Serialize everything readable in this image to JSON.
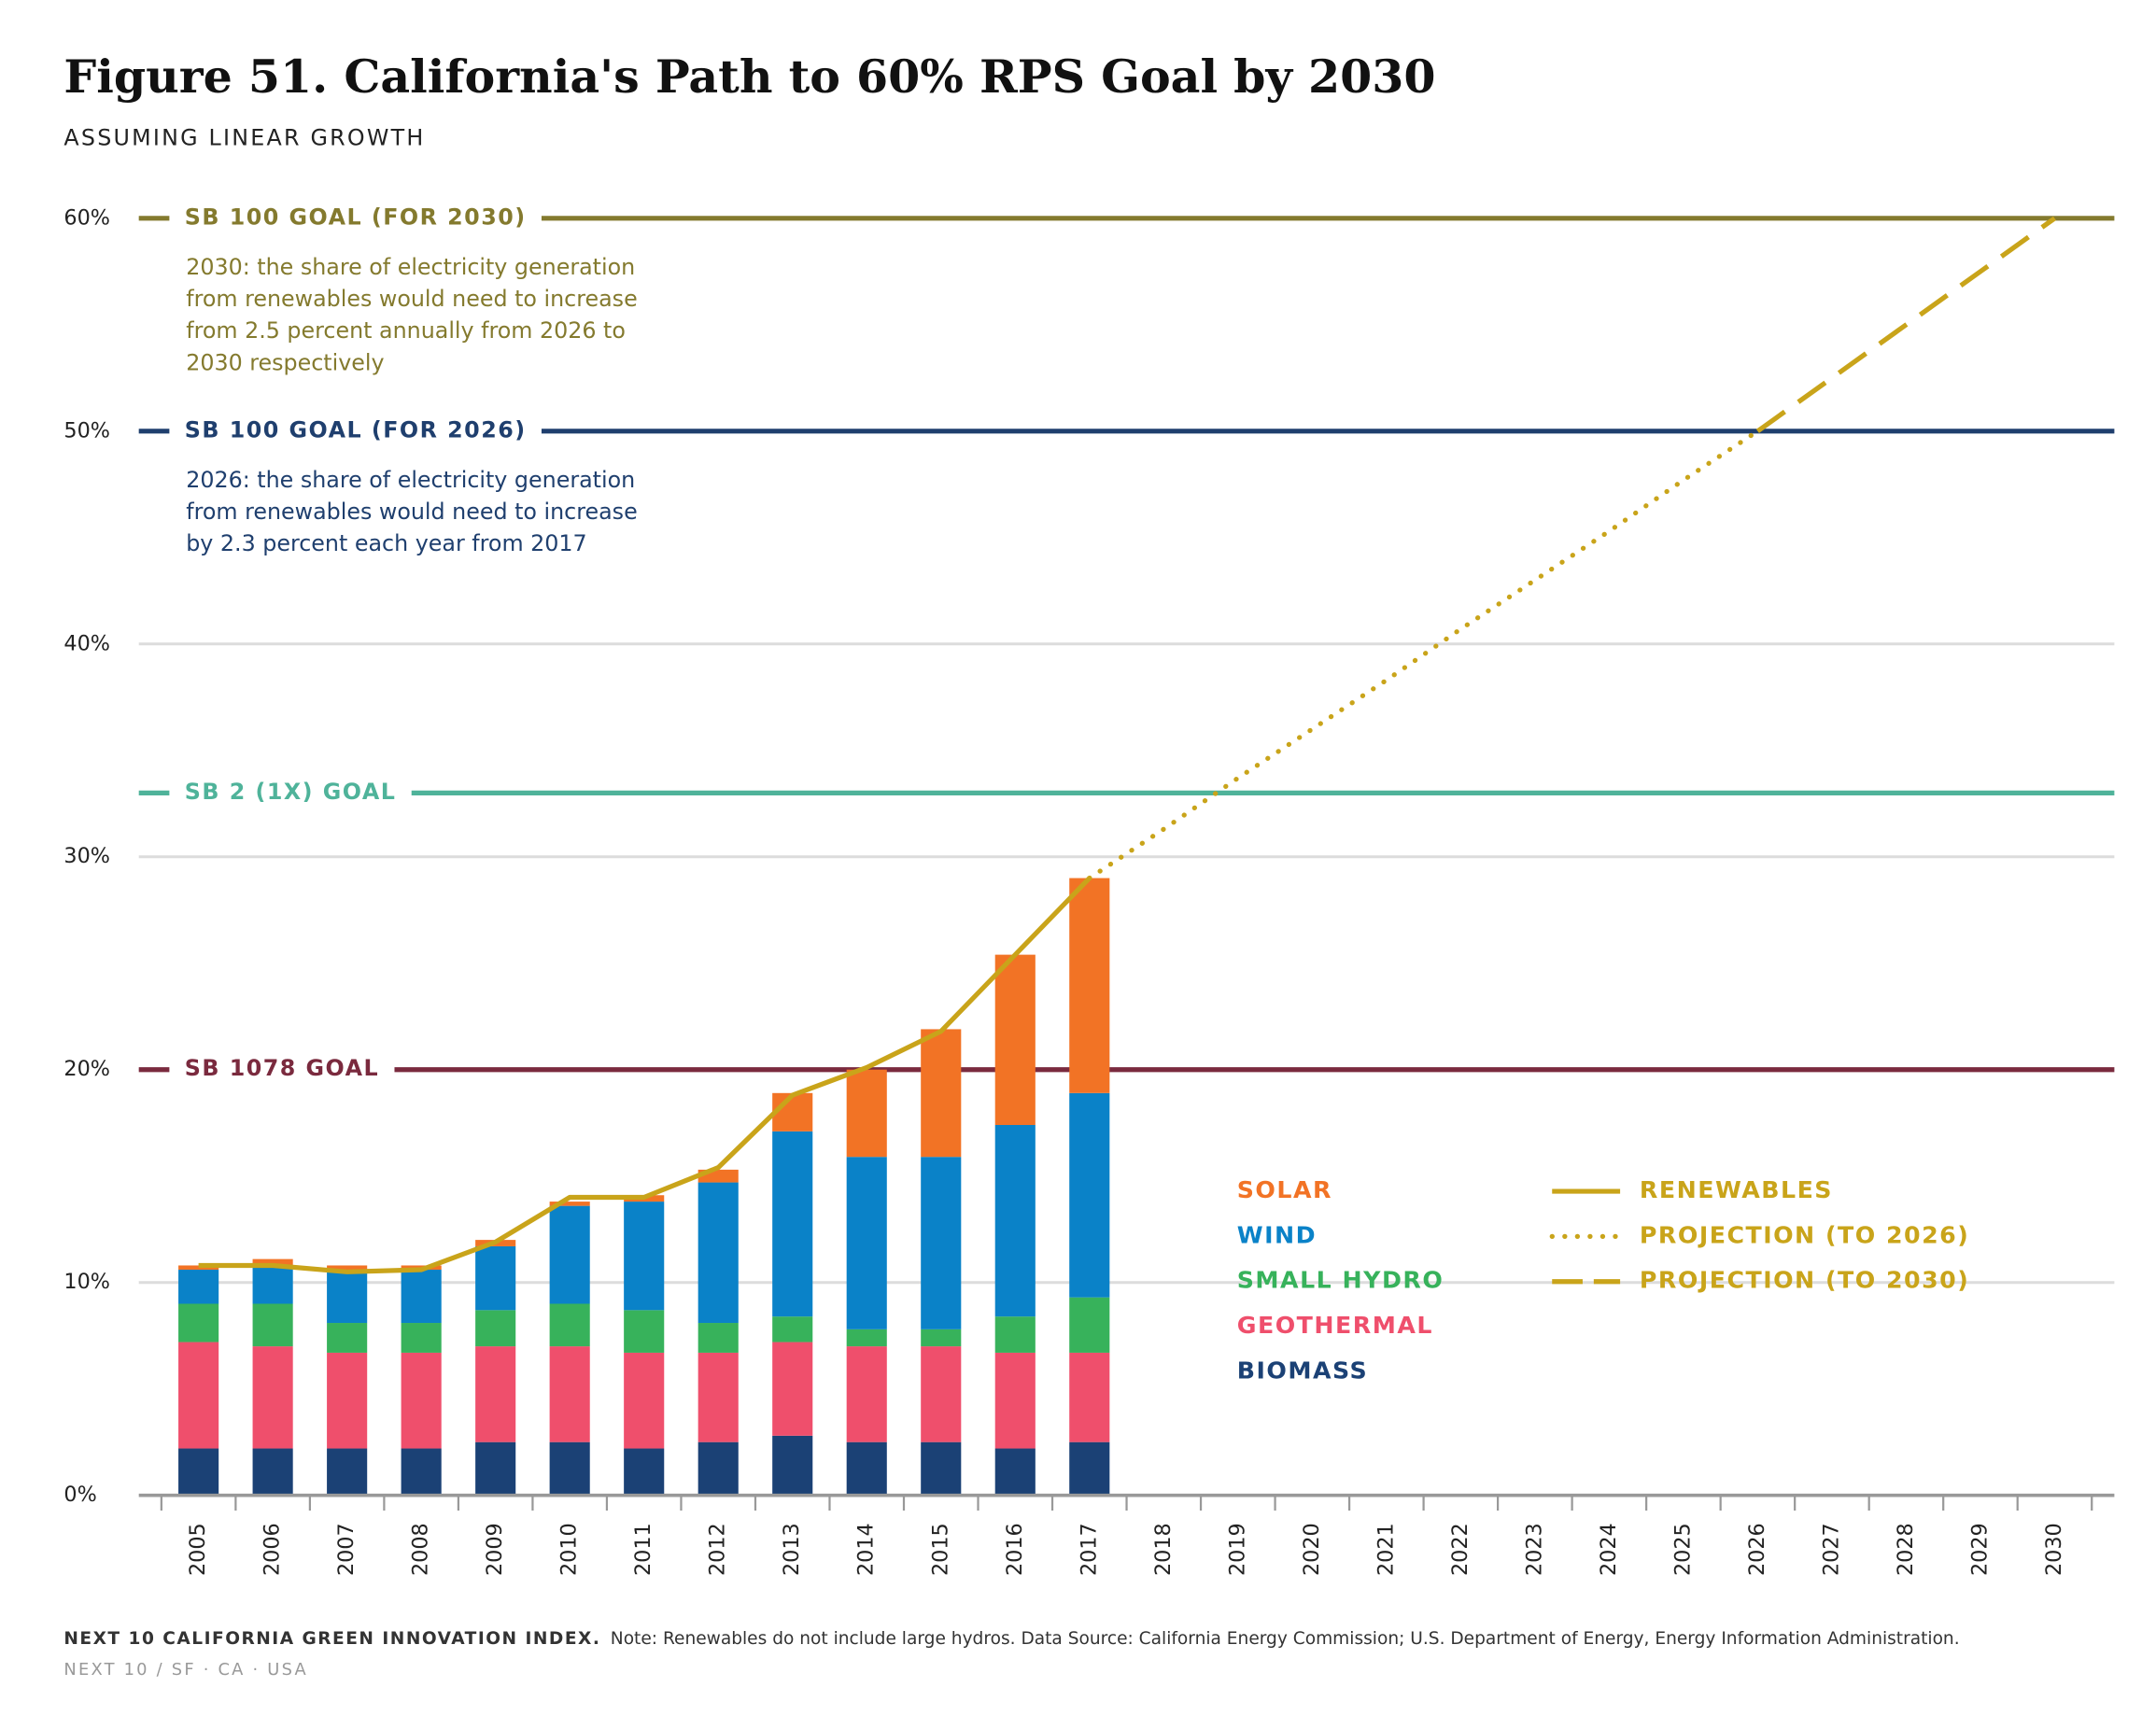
{
  "chart_data": {
    "type": "bar",
    "title": "Figure 51. California's Path to 60% RPS Goal by 2030",
    "subtitle": "ASSUMING LINEAR GROWTH",
    "categories": [
      "2005",
      "2006",
      "2007",
      "2008",
      "2009",
      "2010",
      "2011",
      "2012",
      "2013",
      "2014",
      "2015",
      "2016",
      "2017",
      "2018",
      "2019",
      "2020",
      "2021",
      "2022",
      "2023",
      "2024",
      "2025",
      "2026",
      "2027",
      "2028",
      "2029",
      "2030"
    ],
    "series": [
      {
        "name": "BIOMASS",
        "color": "#1b4175",
        "values": [
          2.2,
          2.2,
          2.2,
          2.2,
          2.5,
          2.5,
          2.2,
          2.5,
          2.8,
          2.5,
          2.5,
          2.2,
          2.5,
          null,
          null,
          null,
          null,
          null,
          null,
          null,
          null,
          null,
          null,
          null,
          null,
          null
        ]
      },
      {
        "name": "GEOTHERMAL",
        "color": "#ef4f6c",
        "values": [
          5.0,
          4.8,
          4.5,
          4.5,
          4.5,
          4.5,
          4.5,
          4.2,
          4.4,
          4.5,
          4.5,
          4.5,
          4.2,
          null,
          null,
          null,
          null,
          null,
          null,
          null,
          null,
          null,
          null,
          null,
          null,
          null
        ]
      },
      {
        "name": "SMALL HYDRO",
        "color": "#37b25b",
        "values": [
          1.8,
          2.0,
          1.4,
          1.4,
          1.7,
          2.0,
          2.0,
          1.4,
          1.2,
          0.8,
          0.8,
          1.7,
          2.6,
          null,
          null,
          null,
          null,
          null,
          null,
          null,
          null,
          null,
          null,
          null,
          null,
          null
        ]
      },
      {
        "name": "WIND",
        "color": "#0a82c8",
        "values": [
          1.6,
          1.8,
          2.5,
          2.5,
          3.0,
          4.6,
          5.1,
          6.6,
          8.7,
          8.1,
          8.1,
          9.0,
          9.6,
          null,
          null,
          null,
          null,
          null,
          null,
          null,
          null,
          null,
          null,
          null,
          null,
          null
        ]
      },
      {
        "name": "SOLAR",
        "color": "#f27325",
        "values": [
          0.2,
          0.3,
          0.2,
          0.2,
          0.3,
          0.2,
          0.3,
          0.6,
          1.8,
          4.1,
          6.0,
          8.0,
          10.1,
          null,
          null,
          null,
          null,
          null,
          null,
          null,
          null,
          null,
          null,
          null,
          null,
          null
        ]
      }
    ],
    "lines": [
      {
        "name": "RENEWABLES",
        "color": "#c9a41a",
        "style": "solid",
        "values": [
          10.8,
          10.8,
          10.5,
          10.6,
          11.9,
          14.0,
          14.0,
          15.4,
          18.8,
          20.1,
          21.8,
          25.4,
          29.0,
          null,
          null,
          null,
          null,
          null,
          null,
          null,
          null,
          null,
          null,
          null,
          null,
          null
        ]
      },
      {
        "name": "PROJECTION (TO 2026)",
        "color": "#c9a41a",
        "style": "dotted",
        "values": [
          null,
          null,
          null,
          null,
          null,
          null,
          null,
          null,
          null,
          null,
          null,
          null,
          29.0,
          31.3,
          33.7,
          36.0,
          38.3,
          40.7,
          43.0,
          45.3,
          47.7,
          50.0,
          null,
          null,
          null,
          null
        ]
      },
      {
        "name": "PROJECTION (TO 2030)",
        "color": "#c9a41a",
        "style": "dashed",
        "values": [
          null,
          null,
          null,
          null,
          null,
          null,
          null,
          null,
          null,
          null,
          null,
          null,
          null,
          null,
          null,
          null,
          null,
          null,
          null,
          null,
          null,
          50.0,
          52.5,
          55.0,
          57.5,
          60.0
        ]
      }
    ],
    "goals": [
      {
        "label": "SB 100 GOAL (FOR 2030)",
        "value": 60,
        "color": "#847a2e",
        "note": [
          "2030: the share of electricity generation",
          "from renewables would need to increase",
          "from 2.5 percent annually from 2026 to",
          "2030 respectively"
        ]
      },
      {
        "label": "SB 100 GOAL (FOR 2026)",
        "value": 50,
        "color": "#1f3f6e",
        "note": [
          "2026: the share of electricity generation",
          "from renewables would need to increase",
          "by 2.3 percent each year from 2017"
        ]
      },
      {
        "label": "SB 2 (1X) GOAL",
        "value": 33,
        "color": "#4fb39a"
      },
      {
        "label": "SB 1078 GOAL",
        "value": 20,
        "color": "#7a2a3e"
      }
    ],
    "ylim": [
      0,
      60
    ],
    "yticks": [
      {
        "value": 0,
        "label": "0%"
      },
      {
        "value": 10,
        "label": "10%"
      },
      {
        "value": 20,
        "label": "20%"
      },
      {
        "value": 30,
        "label": "30%"
      },
      {
        "value": 40,
        "label": "40%"
      },
      {
        "value": 50,
        "label": "50%"
      },
      {
        "value": 60,
        "label": "60%"
      }
    ],
    "grid": true,
    "footer": {
      "source_label": "NEXT 10 CALIFORNIA GREEN INNOVATION INDEX.",
      "note": "Note: Renewables do not include large hydros. Data Source: California Energy Commission; U.S. Department of Energy, Energy Information Administration.",
      "tagline": "NEXT 10  /  SF · CA · USA"
    }
  }
}
